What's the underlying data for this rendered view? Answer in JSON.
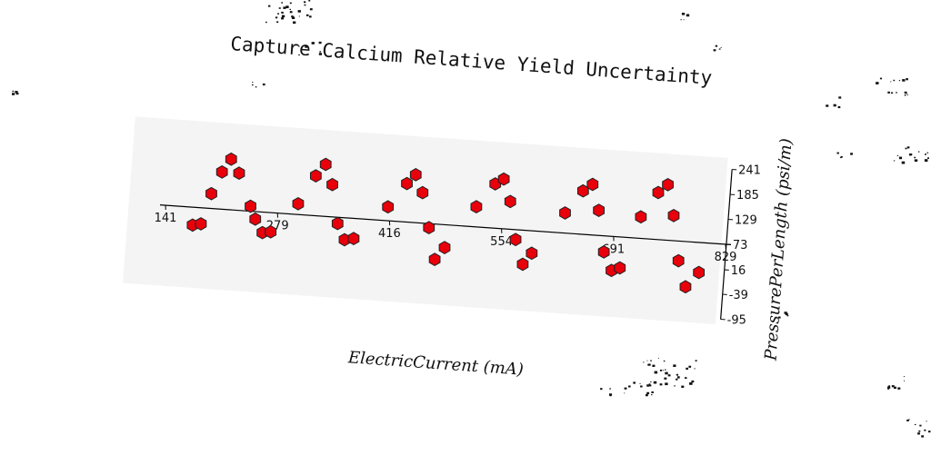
{
  "chart_data": {
    "type": "scatter",
    "title": "Capture Calcium Relative Yield Uncertainty",
    "xlabel": "ElectricCurrent (mA)",
    "ylabel": "PressurePerLength (psi/m)",
    "x_ticks": [
      "141",
      "279",
      "416",
      "554",
      "691",
      "829"
    ],
    "y_ticks": [
      "-95",
      "-39",
      "16",
      "73",
      "129",
      "185",
      "241"
    ],
    "xlim": [
      141,
      829
    ],
    "ylim": [
      -95,
      241
    ],
    "grid": false,
    "legend": "none",
    "marker": "hexagon",
    "marker_color": "#e8000b",
    "panel_color": "#f4f4f4",
    "points": [
      {
        "x": 176,
        "y": 33
      },
      {
        "x": 186,
        "y": 37
      },
      {
        "x": 196,
        "y": 106
      },
      {
        "x": 207,
        "y": 156
      },
      {
        "x": 217,
        "y": 186
      },
      {
        "x": 228,
        "y": 156
      },
      {
        "x": 245,
        "y": 84
      },
      {
        "x": 252,
        "y": 56
      },
      {
        "x": 262,
        "y": 27
      },
      {
        "x": 272,
        "y": 30
      },
      {
        "x": 303,
        "y": 97
      },
      {
        "x": 322,
        "y": 162
      },
      {
        "x": 333,
        "y": 189
      },
      {
        "x": 343,
        "y": 145
      },
      {
        "x": 353,
        "y": 59
      },
      {
        "x": 363,
        "y": 24
      },
      {
        "x": 374,
        "y": 28
      },
      {
        "x": 413,
        "y": 104
      },
      {
        "x": 434,
        "y": 159
      },
      {
        "x": 444,
        "y": 180
      },
      {
        "x": 454,
        "y": 141
      },
      {
        "x": 465,
        "y": 64
      },
      {
        "x": 475,
        "y": -6
      },
      {
        "x": 486,
        "y": 22
      },
      {
        "x": 521,
        "y": 118
      },
      {
        "x": 542,
        "y": 172
      },
      {
        "x": 552,
        "y": 184
      },
      {
        "x": 562,
        "y": 135
      },
      {
        "x": 572,
        "y": 51
      },
      {
        "x": 583,
        "y": -3
      },
      {
        "x": 593,
        "y": 23
      },
      {
        "x": 630,
        "y": 118
      },
      {
        "x": 650,
        "y": 170
      },
      {
        "x": 661,
        "y": 186
      },
      {
        "x": 671,
        "y": 129
      },
      {
        "x": 681,
        "y": 37
      },
      {
        "x": 692,
        "y": -3
      },
      {
        "x": 702,
        "y": 4
      },
      {
        "x": 723,
        "y": 121
      },
      {
        "x": 742,
        "y": 178
      },
      {
        "x": 753,
        "y": 197
      },
      {
        "x": 763,
        "y": 129
      },
      {
        "x": 773,
        "y": 29
      },
      {
        "x": 784,
        "y": -28
      },
      {
        "x": 799,
        "y": 6
      }
    ]
  }
}
